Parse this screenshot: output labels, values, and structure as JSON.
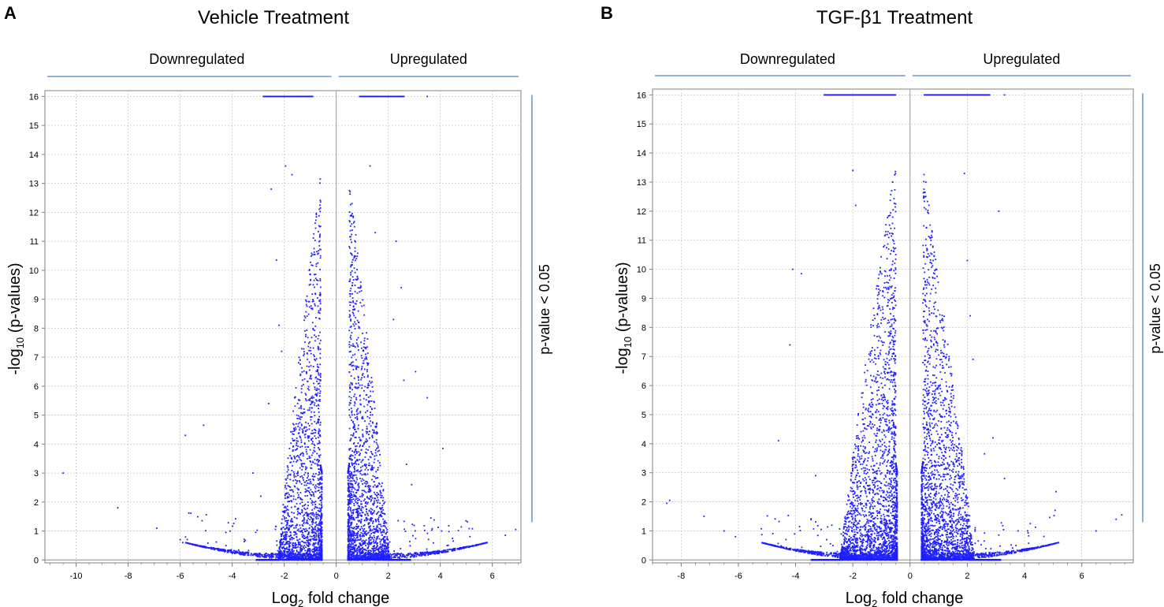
{
  "colors": {
    "point": "#1f1fff",
    "bracket": "#4f81bd",
    "axis": "#808080",
    "grid": "#c8c8c8",
    "text": "#000000",
    "zero_line": "#9a9a9a"
  },
  "chart_data": [
    {
      "panel_label": "A",
      "type": "scatter",
      "title": "Vehicle Treatment",
      "xlabel_main": "Log",
      "xlabel_sub": "2",
      "xlabel_rest": " fold change",
      "ylabel_pre": "-log",
      "ylabel_sub": "10",
      "ylabel_post": " (p-values)",
      "down_label": "Downregulated",
      "up_label": "Upregulated",
      "side_label": "p-value < 0.05",
      "xlim": [
        -11.2,
        7.1
      ],
      "ylim": [
        -0.1,
        16.2
      ],
      "x_ticks": [
        -10,
        -8,
        -6,
        -4,
        -2,
        0,
        2,
        4,
        6
      ],
      "y_ticks": [
        0,
        1,
        2,
        3,
        4,
        5,
        6,
        7,
        8,
        9,
        10,
        11,
        12,
        13,
        14,
        15,
        16
      ],
      "grid": true,
      "sig_bracket_ymin": 1.3,
      "cap_value": 16,
      "cap_segments": [
        [
          -2.8,
          -0.9
        ],
        [
          0.9,
          2.6
        ]
      ],
      "cap_points": [
        2.6,
        3.5
      ],
      "max_value": 13.65,
      "points": [
        [
          -10.5,
          3.0
        ],
        [
          -8.4,
          1.8
        ],
        [
          -6.9,
          1.1
        ],
        [
          -6.0,
          0.7
        ],
        [
          -5.9,
          0.6
        ],
        [
          -5.8,
          4.3
        ],
        [
          -5.1,
          4.65
        ],
        [
          -3.2,
          3.0
        ],
        [
          -2.9,
          2.2
        ],
        [
          -2.6,
          5.4
        ],
        [
          -2.5,
          12.8
        ],
        [
          -2.3,
          10.35
        ],
        [
          -2.2,
          8.1
        ],
        [
          -2.1,
          7.2
        ],
        [
          -1.95,
          13.6
        ],
        [
          -1.7,
          13.3
        ],
        [
          2.2,
          8.3
        ],
        [
          2.5,
          9.4
        ],
        [
          2.6,
          6.2
        ],
        [
          2.7,
          3.3
        ],
        [
          2.9,
          2.6
        ],
        [
          3.05,
          6.5
        ],
        [
          3.5,
          5.6
        ],
        [
          4.1,
          3.85
        ],
        [
          4.05,
          1.0
        ],
        [
          6.5,
          0.85
        ],
        [
          6.9,
          1.05
        ],
        [
          1.5,
          11.3
        ],
        [
          2.3,
          11.0
        ],
        [
          1.3,
          13.6
        ]
      ],
      "density": {
        "inner_down": -0.55,
        "inner_up": 0.45,
        "spread_down": 1.05,
        "spread_up": 1.0,
        "tail_left": -5.8,
        "tail_right": 5.8,
        "count": 5200,
        "seed": 11
      }
    },
    {
      "panel_label": "B",
      "type": "scatter",
      "title": "TGF-β1 Treatment",
      "xlabel_main": "Log",
      "xlabel_sub": "2",
      "xlabel_rest": " fold change",
      "ylabel_pre": "-log",
      "ylabel_sub": "10",
      "ylabel_post": " (p-values)",
      "down_label": "Downregulated",
      "up_label": "Upregulated",
      "side_label": "p-value < 0.05",
      "xlim": [
        -9.0,
        7.8
      ],
      "ylim": [
        -0.1,
        16.2
      ],
      "x_ticks": [
        -8,
        -6,
        -4,
        -2,
        0,
        2,
        4,
        6
      ],
      "y_ticks": [
        0,
        1,
        2,
        3,
        4,
        5,
        6,
        7,
        8,
        9,
        10,
        11,
        12,
        13,
        14,
        15,
        16
      ],
      "grid": true,
      "sig_bracket_ymin": 1.3,
      "cap_value": 16,
      "cap_segments": [
        [
          -3.0,
          -0.5
        ],
        [
          0.5,
          2.8
        ]
      ],
      "cap_points": [
        3.3
      ],
      "max_value": 14.05,
      "points": [
        [
          -8.5,
          1.95
        ],
        [
          -8.4,
          2.05
        ],
        [
          -7.2,
          1.5
        ],
        [
          -6.5,
          1.0
        ],
        [
          -6.1,
          0.8
        ],
        [
          -4.6,
          4.1
        ],
        [
          -4.2,
          7.4
        ],
        [
          -4.1,
          10.0
        ],
        [
          -3.8,
          9.85
        ],
        [
          -3.3,
          2.9
        ],
        [
          -2.0,
          13.4
        ],
        [
          -1.9,
          12.2
        ],
        [
          1.9,
          13.3
        ],
        [
          2.0,
          10.3
        ],
        [
          2.1,
          8.4
        ],
        [
          2.2,
          6.9
        ],
        [
          3.1,
          12.0
        ],
        [
          3.3,
          2.8
        ],
        [
          4.2,
          1.25
        ],
        [
          5.1,
          2.35
        ],
        [
          7.2,
          1.4
        ],
        [
          7.4,
          1.55
        ],
        [
          6.5,
          1.0
        ],
        [
          2.9,
          4.2
        ],
        [
          2.6,
          3.65
        ]
      ],
      "density": {
        "inner_down": -0.45,
        "inner_up": 0.4,
        "spread_down": 1.25,
        "spread_up": 1.15,
        "tail_left": -5.2,
        "tail_right": 5.2,
        "count": 6800,
        "seed": 23
      }
    }
  ]
}
